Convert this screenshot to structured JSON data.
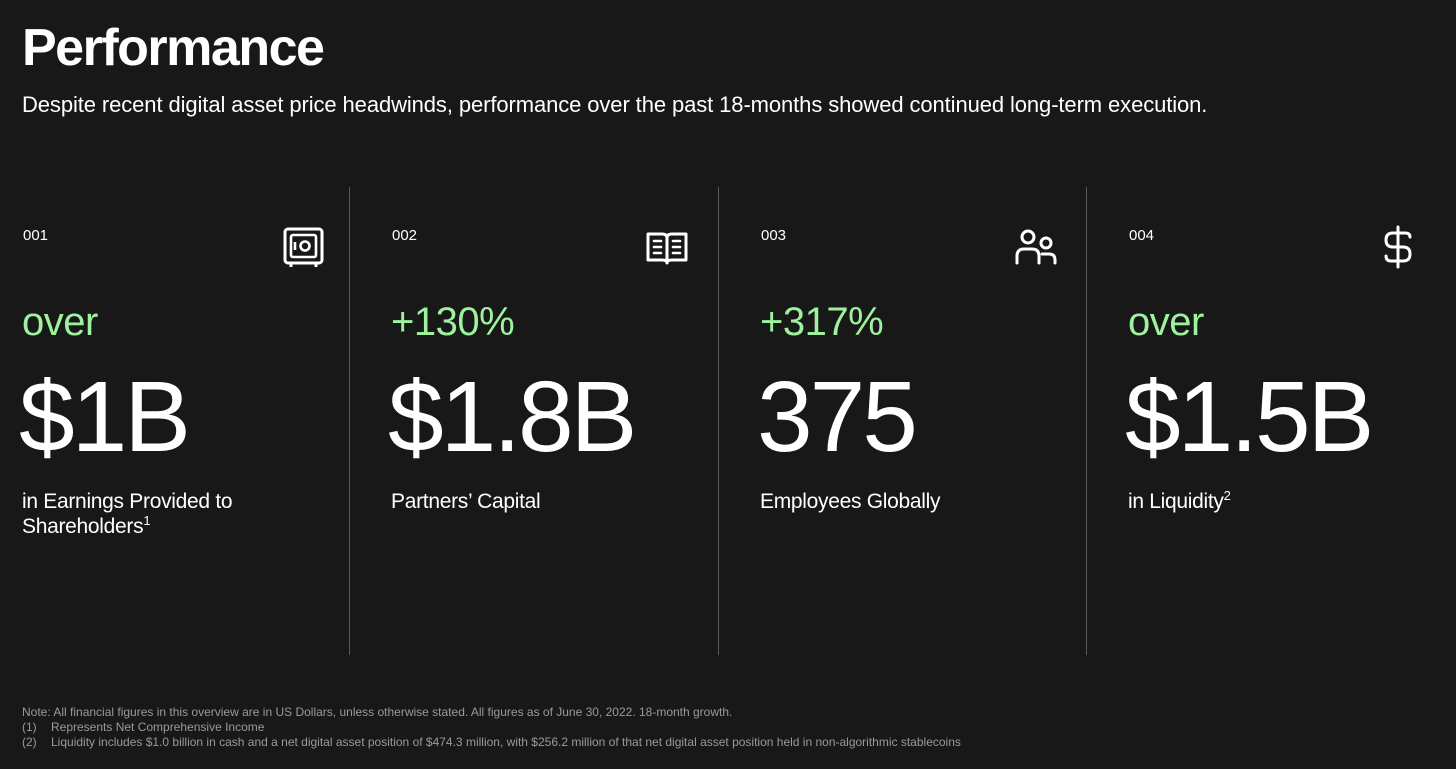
{
  "header": {
    "title": "Performance",
    "subtitle": "Despite recent digital asset price headwinds, performance over the past 18-months showed continued long-term execution."
  },
  "colors": {
    "background": "#181818",
    "accent_green": "#9ef29e",
    "divider": "#5a5a5a"
  },
  "cards": [
    {
      "number": "001",
      "icon": "safe-icon",
      "qualifier": "over",
      "value": "$1B",
      "description": "in Earnings Provided to Shareholders",
      "footnote_ref": "1"
    },
    {
      "number": "002",
      "icon": "open-book-icon",
      "qualifier": "+130%",
      "value": "$1.8B",
      "description": "Partners’ Capital",
      "footnote_ref": ""
    },
    {
      "number": "003",
      "icon": "people-icon",
      "qualifier": "+317%",
      "value": "375",
      "description": "Employees Globally",
      "footnote_ref": ""
    },
    {
      "number": "004",
      "icon": "dollar-sign-icon",
      "qualifier": "over",
      "value": "$1.5B",
      "description": "in Liquidity",
      "footnote_ref": "2"
    }
  ],
  "footnotes": {
    "note": "Note: All financial figures in this overview are in US Dollars, unless otherwise stated. All figures as of June 30, 2022. 18-month growth.",
    "items": [
      {
        "mark": "(1)",
        "text": "Represents Net Comprehensive Income"
      },
      {
        "mark": "(2)",
        "text": "Liquidity includes $1.0 billion in cash and a net digital asset position of $474.3 million, with $256.2 million of that net digital asset position held in non-algorithmic stablecoins"
      }
    ]
  }
}
